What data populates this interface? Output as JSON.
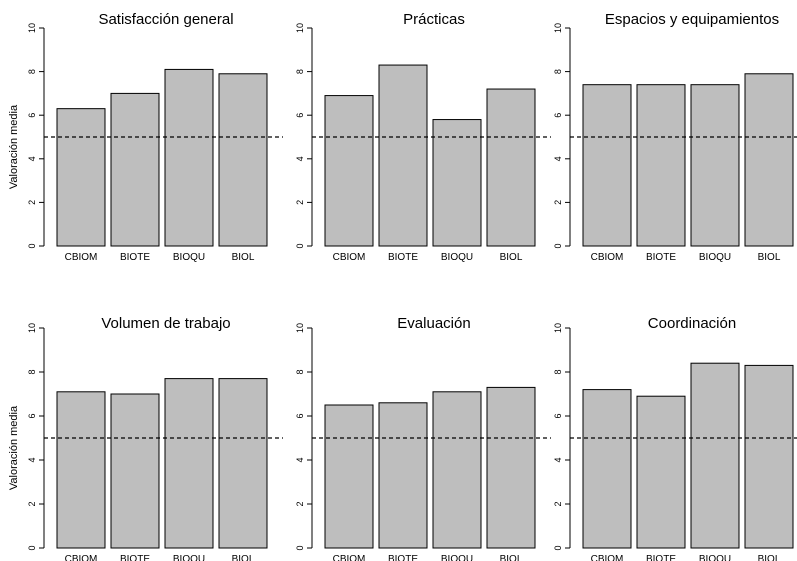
{
  "chart_data": [
    {
      "type": "bar",
      "title": "Satisfacción general",
      "ylabel": "Valoración media",
      "categories": [
        "CBIOM",
        "BIOTE",
        "BIOQU",
        "BIOL"
      ],
      "values": [
        6.3,
        7.0,
        8.1,
        7.9
      ],
      "ylim": [
        0,
        10
      ],
      "yticks": [
        "0",
        "2",
        "4",
        "6",
        "8",
        "10"
      ],
      "reference_line": 5,
      "bar_color": "#bebebe",
      "grid": false
    },
    {
      "type": "bar",
      "title": "Prácticas",
      "ylabel": "",
      "categories": [
        "CBIOM",
        "BIOTE",
        "BIOQU",
        "BIOL"
      ],
      "values": [
        6.9,
        8.3,
        5.8,
        7.2
      ],
      "ylim": [
        0,
        10
      ],
      "yticks": [
        "0",
        "2",
        "4",
        "6",
        "8",
        "10"
      ],
      "reference_line": 5,
      "bar_color": "#bebebe",
      "grid": false
    },
    {
      "type": "bar",
      "title": "Espacios y equipamientos",
      "ylabel": "",
      "categories": [
        "CBIOM",
        "BIOTE",
        "BIOQU",
        "BIOL"
      ],
      "values": [
        7.4,
        7.4,
        7.4,
        7.9
      ],
      "ylim": [
        0,
        10
      ],
      "yticks": [
        "0",
        "2",
        "4",
        "6",
        "8",
        "10"
      ],
      "reference_line": 5,
      "bar_color": "#bebebe",
      "grid": false
    },
    {
      "type": "bar",
      "title": "Volumen de trabajo",
      "ylabel": "Valoración media",
      "categories": [
        "CBIOM",
        "BIOTE",
        "BIOQU",
        "BIOL"
      ],
      "values": [
        7.1,
        7.0,
        7.7,
        7.7
      ],
      "ylim": [
        0,
        10
      ],
      "yticks": [
        "0",
        "2",
        "4",
        "6",
        "8",
        "10"
      ],
      "reference_line": 5,
      "bar_color": "#bebebe",
      "grid": false
    },
    {
      "type": "bar",
      "title": "Evaluación",
      "ylabel": "",
      "categories": [
        "CBIOM",
        "BIOTE",
        "BIOQU",
        "BIOL"
      ],
      "values": [
        6.5,
        6.6,
        7.1,
        7.3
      ],
      "ylim": [
        0,
        10
      ],
      "yticks": [
        "0",
        "2",
        "4",
        "6",
        "8",
        "10"
      ],
      "reference_line": 5,
      "bar_color": "#bebebe",
      "grid": false
    },
    {
      "type": "bar",
      "title": "Coordinación",
      "ylabel": "",
      "categories": [
        "CBIOM",
        "BIOTE",
        "BIOQU",
        "BIOL"
      ],
      "values": [
        7.2,
        6.9,
        8.4,
        8.3
      ],
      "ylim": [
        0,
        10
      ],
      "yticks": [
        "0",
        "2",
        "4",
        "6",
        "8",
        "10"
      ],
      "reference_line": 5,
      "bar_color": "#bebebe",
      "grid": false
    }
  ]
}
